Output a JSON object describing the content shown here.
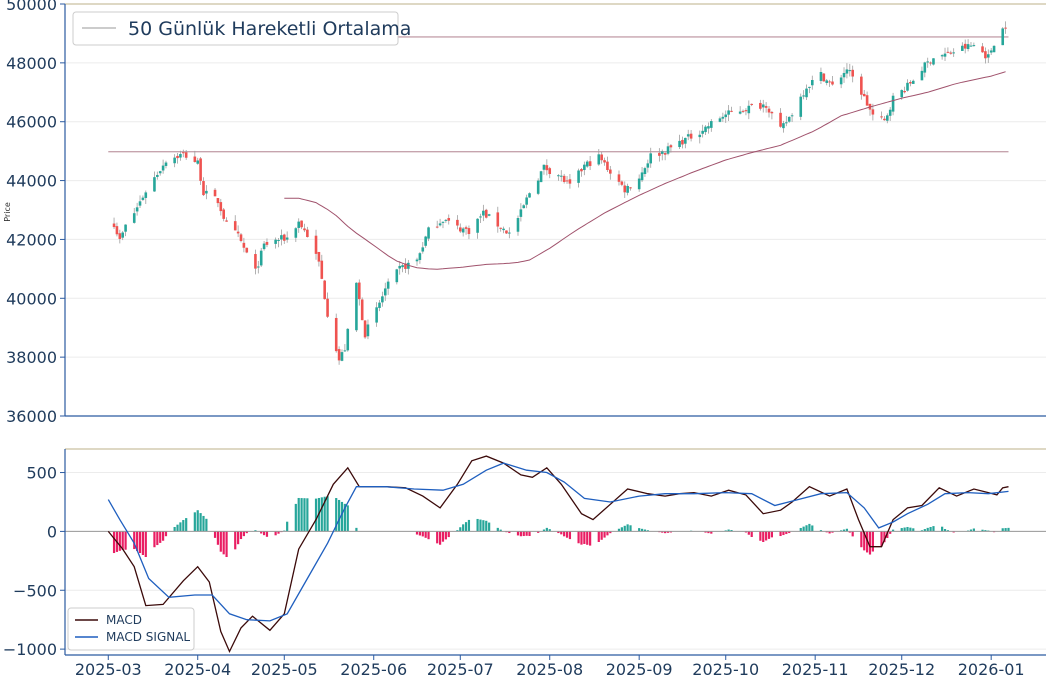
{
  "chart_data": [
    {
      "type": "candlestick",
      "ylabel": "Price",
      "ylim": [
        36000,
        50000
      ],
      "yticks": [
        36000,
        38000,
        40000,
        42000,
        44000,
        46000,
        48000,
        50000
      ],
      "grid": true,
      "legend": {
        "position": "top-left",
        "entries": [
          "50 Günlük Hareketli Ortalama"
        ]
      },
      "horizontal_lines": [
        44980,
        48880
      ],
      "colors": {
        "up": "#26a69a",
        "down": "#ef5350",
        "ma": "#a0526c",
        "hline": "#c6a4ae"
      },
      "close_anchors": [
        [
          "2025-03-03",
          42550
        ],
        [
          "2025-03-05",
          41950
        ],
        [
          "2025-03-07",
          42450
        ],
        [
          "2025-03-10",
          42900
        ],
        [
          "2025-03-14",
          43650
        ],
        [
          "2025-03-18",
          44250
        ],
        [
          "2025-03-21",
          44700
        ],
        [
          "2025-03-27",
          44900
        ],
        [
          "2025-04-01",
          44600
        ],
        [
          "2025-04-03",
          43600
        ],
        [
          "2025-04-08",
          43300
        ],
        [
          "2025-04-11",
          42500
        ],
        [
          "2025-04-15",
          42100
        ],
        [
          "2025-04-21",
          40900
        ],
        [
          "2025-04-24",
          41800
        ],
        [
          "2025-04-29",
          42000
        ],
        [
          "2025-05-02",
          42050
        ],
        [
          "2025-05-06",
          42600
        ],
        [
          "2025-05-09",
          42150
        ],
        [
          "2025-05-13",
          41200
        ],
        [
          "2025-05-16",
          39500
        ],
        [
          "2025-05-20",
          37900
        ],
        [
          "2025-05-22",
          38300
        ],
        [
          "2025-05-26",
          40500
        ],
        [
          "2025-05-29",
          38800
        ],
        [
          "2025-06-02",
          39600
        ],
        [
          "2025-06-05",
          40300
        ],
        [
          "2025-06-10",
          41000
        ],
        [
          "2025-06-16",
          41300
        ],
        [
          "2025-06-20",
          42300
        ],
        [
          "2025-06-25",
          42700
        ],
        [
          "2025-06-30",
          42400
        ],
        [
          "2025-07-04",
          42300
        ],
        [
          "2025-07-09",
          42900
        ],
        [
          "2025-07-14",
          42500
        ],
        [
          "2025-07-18",
          42200
        ],
        [
          "2025-07-22",
          42900
        ],
        [
          "2025-07-25",
          43600
        ],
        [
          "2025-07-30",
          44450
        ],
        [
          "2025-08-04",
          44200
        ],
        [
          "2025-08-08",
          43800
        ],
        [
          "2025-08-13",
          44500
        ],
        [
          "2025-08-18",
          44800
        ],
        [
          "2025-08-22",
          44300
        ],
        [
          "2025-08-27",
          43700
        ],
        [
          "2025-09-01",
          44100
        ],
        [
          "2025-09-05",
          44850
        ],
        [
          "2025-09-10",
          45000
        ],
        [
          "2025-09-15",
          45300
        ],
        [
          "2025-09-19",
          45500
        ],
        [
          "2025-09-24",
          45800
        ],
        [
          "2025-09-30",
          46200
        ],
        [
          "2025-10-06",
          46400
        ],
        [
          "2025-10-10",
          46500
        ],
        [
          "2025-10-15",
          46600
        ],
        [
          "2025-10-20",
          45700
        ],
        [
          "2025-10-24",
          46300
        ],
        [
          "2025-10-29",
          47200
        ],
        [
          "2025-11-03",
          47600
        ],
        [
          "2025-11-07",
          47200
        ],
        [
          "2025-11-12",
          47800
        ],
        [
          "2025-11-17",
          47000
        ],
        [
          "2025-11-21",
          46200
        ],
        [
          "2025-11-25",
          46000
        ],
        [
          "2025-11-28",
          46800
        ],
        [
          "2025-12-03",
          47200
        ],
        [
          "2025-12-08",
          47800
        ],
        [
          "2025-12-12",
          48200
        ],
        [
          "2025-12-17",
          48300
        ],
        [
          "2025-12-22",
          48500
        ],
        [
          "2025-12-26",
          48600
        ],
        [
          "2025-12-31",
          48200
        ],
        [
          "2026-01-02",
          48700
        ],
        [
          "2026-01-06",
          49300
        ]
      ],
      "ma50_anchors": [
        [
          "2025-05-01",
          43400
        ],
        [
          "2025-05-06",
          43400
        ],
        [
          "2025-05-12",
          43250
        ],
        [
          "2025-05-18",
          42900
        ],
        [
          "2025-05-24",
          42350
        ],
        [
          "2025-06-01",
          41800
        ],
        [
          "2025-06-08",
          41300
        ],
        [
          "2025-06-15",
          41050
        ],
        [
          "2025-06-22",
          40980
        ],
        [
          "2025-07-01",
          41050
        ],
        [
          "2025-07-10",
          41150
        ],
        [
          "2025-07-20",
          41200
        ],
        [
          "2025-07-25",
          41300
        ],
        [
          "2025-08-01",
          41700
        ],
        [
          "2025-08-10",
          42300
        ],
        [
          "2025-08-20",
          42900
        ],
        [
          "2025-09-01",
          43500
        ],
        [
          "2025-09-10",
          43900
        ],
        [
          "2025-09-20",
          44300
        ],
        [
          "2025-10-01",
          44700
        ],
        [
          "2025-10-10",
          44950
        ],
        [
          "2025-10-20",
          45200
        ],
        [
          "2025-11-01",
          45700
        ],
        [
          "2025-11-10",
          46200
        ],
        [
          "2025-11-20",
          46500
        ],
        [
          "2025-12-01",
          46800
        ],
        [
          "2025-12-10",
          47000
        ],
        [
          "2025-12-20",
          47300
        ],
        [
          "2026-01-01",
          47550
        ],
        [
          "2026-01-06",
          47700
        ]
      ]
    },
    {
      "type": "line",
      "ylim": [
        -1050,
        700
      ],
      "yticks": [
        -1000,
        -500,
        0,
        500
      ],
      "grid": true,
      "legend": {
        "position": "bottom-left",
        "entries": [
          "MACD",
          "MACD SIGNAL"
        ]
      },
      "xticks": [
        "2025-03",
        "2025-04",
        "2025-05",
        "2025-06",
        "2025-07",
        "2025-08",
        "2025-09",
        "2025-10",
        "2025-11",
        "2025-12",
        "2026-01"
      ],
      "series": [
        {
          "name": "MACD",
          "color": "#3b0a0a",
          "points": [
            [
              "2025-03-01",
              0
            ],
            [
              "2025-03-06",
              -150
            ],
            [
              "2025-03-10",
              -300
            ],
            [
              "2025-03-14",
              -630
            ],
            [
              "2025-03-20",
              -620
            ],
            [
              "2025-03-27",
              -420
            ],
            [
              "2025-04-01",
              -300
            ],
            [
              "2025-04-05",
              -430
            ],
            [
              "2025-04-09",
              -850
            ],
            [
              "2025-04-12",
              -1020
            ],
            [
              "2025-04-16",
              -820
            ],
            [
              "2025-04-20",
              -720
            ],
            [
              "2025-04-26",
              -840
            ],
            [
              "2025-05-01",
              -700
            ],
            [
              "2025-05-06",
              -150
            ],
            [
              "2025-05-12",
              100
            ],
            [
              "2025-05-18",
              400
            ],
            [
              "2025-05-23",
              540
            ],
            [
              "2025-05-27",
              380
            ],
            [
              "2025-06-05",
              380
            ],
            [
              "2025-06-12",
              370
            ],
            [
              "2025-06-18",
              300
            ],
            [
              "2025-06-24",
              200
            ],
            [
              "2025-06-30",
              400
            ],
            [
              "2025-07-05",
              600
            ],
            [
              "2025-07-10",
              640
            ],
            [
              "2025-07-16",
              580
            ],
            [
              "2025-07-22",
              480
            ],
            [
              "2025-07-26",
              460
            ],
            [
              "2025-07-31",
              540
            ],
            [
              "2025-08-05",
              400
            ],
            [
              "2025-08-12",
              150
            ],
            [
              "2025-08-16",
              100
            ],
            [
              "2025-08-22",
              230
            ],
            [
              "2025-08-28",
              360
            ],
            [
              "2025-09-04",
              320
            ],
            [
              "2025-09-10",
              300
            ],
            [
              "2025-09-15",
              320
            ],
            [
              "2025-09-20",
              330
            ],
            [
              "2025-09-26",
              300
            ],
            [
              "2025-10-02",
              350
            ],
            [
              "2025-10-08",
              310
            ],
            [
              "2025-10-14",
              150
            ],
            [
              "2025-10-20",
              180
            ],
            [
              "2025-10-24",
              250
            ],
            [
              "2025-10-30",
              380
            ],
            [
              "2025-11-06",
              300
            ],
            [
              "2025-11-12",
              360
            ],
            [
              "2025-11-16",
              100
            ],
            [
              "2025-11-20",
              -130
            ],
            [
              "2025-11-24",
              -130
            ],
            [
              "2025-11-28",
              100
            ],
            [
              "2025-12-03",
              200
            ],
            [
              "2025-12-08",
              220
            ],
            [
              "2025-12-14",
              370
            ],
            [
              "2025-12-20",
              300
            ],
            [
              "2025-12-26",
              360
            ],
            [
              "2025-12-31",
              330
            ],
            [
              "2026-01-03",
              310
            ],
            [
              "2026-01-05",
              370
            ],
            [
              "2026-01-07",
              380
            ]
          ]
        },
        {
          "name": "MACD SIGNAL",
          "color": "#1f5fbf",
          "points": [
            [
              "2025-03-01",
              270
            ],
            [
              "2025-03-05",
              100
            ],
            [
              "2025-03-10",
              -100
            ],
            [
              "2025-03-15",
              -400
            ],
            [
              "2025-03-22",
              -560
            ],
            [
              "2025-03-31",
              -540
            ],
            [
              "2025-04-06",
              -540
            ],
            [
              "2025-04-12",
              -700
            ],
            [
              "2025-04-18",
              -750
            ],
            [
              "2025-04-26",
              -760
            ],
            [
              "2025-05-02",
              -700
            ],
            [
              "2025-05-09",
              -400
            ],
            [
              "2025-05-16",
              -100
            ],
            [
              "2025-05-22",
              200
            ],
            [
              "2025-05-26",
              380
            ],
            [
              "2025-06-05",
              380
            ],
            [
              "2025-06-15",
              360
            ],
            [
              "2025-06-25",
              350
            ],
            [
              "2025-07-02",
              400
            ],
            [
              "2025-07-10",
              520
            ],
            [
              "2025-07-16",
              580
            ],
            [
              "2025-07-24",
              520
            ],
            [
              "2025-07-31",
              500
            ],
            [
              "2025-08-06",
              420
            ],
            [
              "2025-08-13",
              280
            ],
            [
              "2025-08-22",
              250
            ],
            [
              "2025-09-01",
              300
            ],
            [
              "2025-09-10",
              320
            ],
            [
              "2025-09-20",
              320
            ],
            [
              "2025-10-01",
              330
            ],
            [
              "2025-10-10",
              320
            ],
            [
              "2025-10-18",
              220
            ],
            [
              "2025-10-26",
              270
            ],
            [
              "2025-11-03",
              320
            ],
            [
              "2025-11-12",
              330
            ],
            [
              "2025-11-18",
              200
            ],
            [
              "2025-11-23",
              30
            ],
            [
              "2025-11-28",
              80
            ],
            [
              "2025-12-03",
              150
            ],
            [
              "2025-12-10",
              230
            ],
            [
              "2025-12-16",
              320
            ],
            [
              "2025-12-24",
              330
            ],
            [
              "2025-12-31",
              320
            ],
            [
              "2026-01-07",
              340
            ]
          ]
        }
      ],
      "histogram_colors": {
        "positive": "#26a69a",
        "negative": "#e91e63"
      }
    }
  ]
}
